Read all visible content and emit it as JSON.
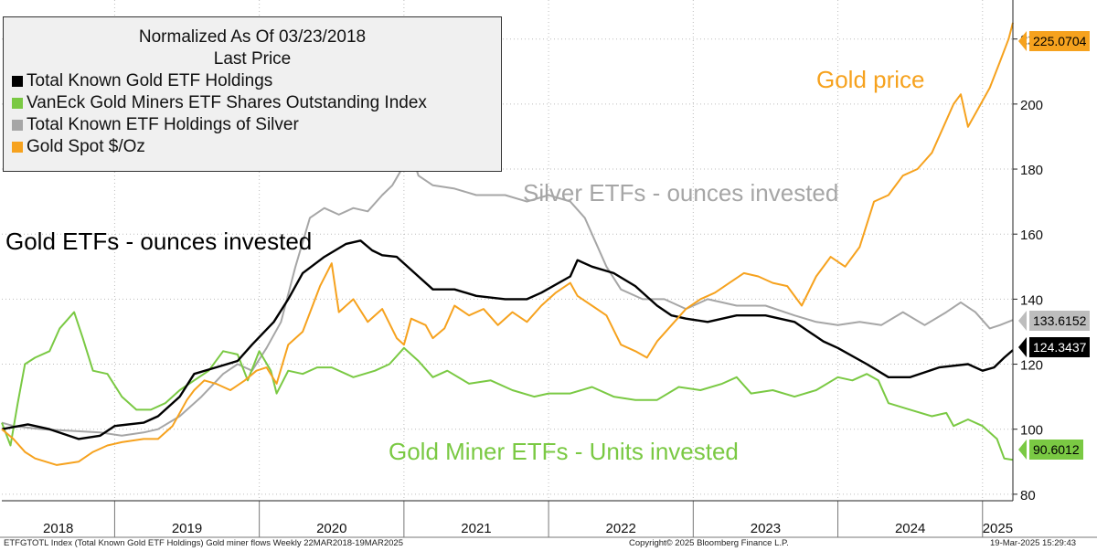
{
  "chart_data": {
    "type": "line",
    "legend": {
      "header_line1": "Normalized As Of 03/23/2018",
      "header_line2": "Last Price",
      "placement": "top-left"
    },
    "y_axis": {
      "ticks": [
        80,
        100,
        120,
        140,
        160,
        180,
        200,
        220
      ],
      "min": 78,
      "max": 232,
      "side": "right"
    },
    "x_axis": {
      "labels": [
        "2018",
        "2019",
        "2020",
        "2021",
        "2022",
        "2023",
        "2024",
        "2025"
      ],
      "range": [
        2018.22,
        2025.21
      ]
    },
    "grid": true,
    "series": [
      {
        "key": "gold_holdings",
        "name": "Total Known Gold ETF Holdings",
        "color": "#000000",
        "last_value": "124.3437",
        "points": [
          [
            2018.22,
            100
          ],
          [
            2018.4,
            101.5
          ],
          [
            2018.55,
            100
          ],
          [
            2018.75,
            97
          ],
          [
            2018.9,
            98
          ],
          [
            2019.0,
            101
          ],
          [
            2019.2,
            102
          ],
          [
            2019.3,
            104
          ],
          [
            2019.45,
            110
          ],
          [
            2019.55,
            117
          ],
          [
            2019.7,
            119
          ],
          [
            2019.85,
            121
          ],
          [
            2019.95,
            126
          ],
          [
            2020.1,
            133
          ],
          [
            2020.2,
            140
          ],
          [
            2020.3,
            148
          ],
          [
            2020.45,
            153
          ],
          [
            2020.6,
            157
          ],
          [
            2020.7,
            158
          ],
          [
            2020.78,
            155
          ],
          [
            2020.85,
            153.5
          ],
          [
            2020.95,
            153
          ],
          [
            2021.1,
            147
          ],
          [
            2021.2,
            143
          ],
          [
            2021.35,
            143
          ],
          [
            2021.5,
            141
          ],
          [
            2021.7,
            140
          ],
          [
            2021.85,
            140
          ],
          [
            2021.95,
            142
          ],
          [
            2022.15,
            147
          ],
          [
            2022.2,
            152
          ],
          [
            2022.3,
            150
          ],
          [
            2022.45,
            148
          ],
          [
            2022.6,
            144
          ],
          [
            2022.75,
            138
          ],
          [
            2022.85,
            135
          ],
          [
            2022.95,
            134
          ],
          [
            2023.1,
            133
          ],
          [
            2023.3,
            135
          ],
          [
            2023.5,
            135
          ],
          [
            2023.7,
            133
          ],
          [
            2023.9,
            127
          ],
          [
            2024.0,
            125
          ],
          [
            2024.2,
            120
          ],
          [
            2024.35,
            116
          ],
          [
            2024.5,
            116
          ],
          [
            2024.7,
            119
          ],
          [
            2024.9,
            120
          ],
          [
            2025.0,
            118
          ],
          [
            2025.08,
            119
          ],
          [
            2025.15,
            122
          ],
          [
            2025.21,
            124.34
          ]
        ]
      },
      {
        "key": "miners",
        "name": "VanEck Gold Miners ETF Shares Outstanding Index",
        "color": "#7ac943",
        "last_value": "90.6012",
        "points": [
          [
            2018.22,
            102
          ],
          [
            2018.28,
            95
          ],
          [
            2018.33,
            108
          ],
          [
            2018.38,
            120
          ],
          [
            2018.45,
            122
          ],
          [
            2018.55,
            124
          ],
          [
            2018.62,
            131
          ],
          [
            2018.72,
            136
          ],
          [
            2018.78,
            128
          ],
          [
            2018.85,
            118
          ],
          [
            2018.95,
            117
          ],
          [
            2019.05,
            110
          ],
          [
            2019.15,
            106
          ],
          [
            2019.25,
            106
          ],
          [
            2019.35,
            108
          ],
          [
            2019.45,
            112
          ],
          [
            2019.55,
            115
          ],
          [
            2019.65,
            118
          ],
          [
            2019.75,
            124
          ],
          [
            2019.85,
            123
          ],
          [
            2019.92,
            115
          ],
          [
            2020.0,
            124
          ],
          [
            2020.08,
            118
          ],
          [
            2020.12,
            111
          ],
          [
            2020.2,
            118
          ],
          [
            2020.3,
            117
          ],
          [
            2020.4,
            119
          ],
          [
            2020.5,
            119
          ],
          [
            2020.65,
            116
          ],
          [
            2020.8,
            118
          ],
          [
            2020.9,
            120
          ],
          [
            2021.0,
            125
          ],
          [
            2021.1,
            121
          ],
          [
            2021.2,
            116
          ],
          [
            2021.3,
            118
          ],
          [
            2021.45,
            114
          ],
          [
            2021.6,
            115
          ],
          [
            2021.75,
            112
          ],
          [
            2021.9,
            110
          ],
          [
            2022.0,
            111
          ],
          [
            2022.15,
            111
          ],
          [
            2022.3,
            113
          ],
          [
            2022.45,
            110
          ],
          [
            2022.6,
            109
          ],
          [
            2022.75,
            109
          ],
          [
            2022.9,
            113
          ],
          [
            2023.05,
            112
          ],
          [
            2023.2,
            114
          ],
          [
            2023.3,
            116
          ],
          [
            2023.4,
            111
          ],
          [
            2023.55,
            112
          ],
          [
            2023.7,
            110
          ],
          [
            2023.85,
            112
          ],
          [
            2024.0,
            116
          ],
          [
            2024.1,
            115
          ],
          [
            2024.2,
            117
          ],
          [
            2024.28,
            115
          ],
          [
            2024.35,
            108
          ],
          [
            2024.5,
            106
          ],
          [
            2024.65,
            104
          ],
          [
            2024.75,
            105
          ],
          [
            2024.8,
            101
          ],
          [
            2024.9,
            103
          ],
          [
            2025.0,
            101
          ],
          [
            2025.1,
            97
          ],
          [
            2025.15,
            91
          ],
          [
            2025.21,
            90.6
          ]
        ]
      },
      {
        "key": "silver",
        "name": "Total Known ETF Holdings of Silver",
        "color": "#a6a6a6",
        "last_value": "133.6152",
        "points": [
          [
            2018.22,
            102
          ],
          [
            2018.3,
            101
          ],
          [
            2018.5,
            100
          ],
          [
            2018.7,
            99.5
          ],
          [
            2018.9,
            99
          ],
          [
            2019.05,
            98
          ],
          [
            2019.2,
            99
          ],
          [
            2019.3,
            100
          ],
          [
            2019.45,
            104
          ],
          [
            2019.6,
            110
          ],
          [
            2019.75,
            117
          ],
          [
            2019.85,
            120
          ],
          [
            2019.95,
            118
          ],
          [
            2020.05,
            125
          ],
          [
            2020.15,
            133
          ],
          [
            2020.25,
            150
          ],
          [
            2020.35,
            165
          ],
          [
            2020.45,
            168
          ],
          [
            2020.55,
            166
          ],
          [
            2020.65,
            168
          ],
          [
            2020.75,
            167
          ],
          [
            2020.85,
            172
          ],
          [
            2020.92,
            175
          ],
          [
            2021.05,
            185
          ],
          [
            2021.1,
            178
          ],
          [
            2021.2,
            175
          ],
          [
            2021.35,
            174
          ],
          [
            2021.5,
            172
          ],
          [
            2021.7,
            172
          ],
          [
            2021.85,
            170
          ],
          [
            2022.0,
            172
          ],
          [
            2022.15,
            170
          ],
          [
            2022.25,
            165
          ],
          [
            2022.3,
            160
          ],
          [
            2022.4,
            150
          ],
          [
            2022.5,
            143
          ],
          [
            2022.65,
            140
          ],
          [
            2022.8,
            140
          ],
          [
            2022.95,
            137
          ],
          [
            2023.1,
            140
          ],
          [
            2023.3,
            138
          ],
          [
            2023.5,
            138
          ],
          [
            2023.7,
            135
          ],
          [
            2023.85,
            133
          ],
          [
            2024.0,
            132
          ],
          [
            2024.15,
            133
          ],
          [
            2024.3,
            132
          ],
          [
            2024.45,
            136
          ],
          [
            2024.6,
            132
          ],
          [
            2024.75,
            136
          ],
          [
            2024.85,
            139
          ],
          [
            2024.95,
            136
          ],
          [
            2025.05,
            131
          ],
          [
            2025.12,
            132
          ],
          [
            2025.21,
            133.6
          ]
        ]
      },
      {
        "key": "gold_spot",
        "name": "Gold Spot $/Oz",
        "color": "#f6a21e",
        "last_value": "225.0704",
        "points": [
          [
            2018.22,
            100
          ],
          [
            2018.3,
            97
          ],
          [
            2018.38,
            93
          ],
          [
            2018.45,
            91
          ],
          [
            2018.6,
            89
          ],
          [
            2018.75,
            90
          ],
          [
            2018.85,
            93
          ],
          [
            2018.95,
            95
          ],
          [
            2019.05,
            96
          ],
          [
            2019.2,
            97
          ],
          [
            2019.3,
            97
          ],
          [
            2019.4,
            101
          ],
          [
            2019.5,
            109
          ],
          [
            2019.55,
            112
          ],
          [
            2019.62,
            115
          ],
          [
            2019.7,
            114
          ],
          [
            2019.8,
            112
          ],
          [
            2019.9,
            115
          ],
          [
            2019.98,
            118
          ],
          [
            2020.05,
            119
          ],
          [
            2020.12,
            114
          ],
          [
            2020.2,
            126
          ],
          [
            2020.3,
            130
          ],
          [
            2020.42,
            144
          ],
          [
            2020.5,
            151
          ],
          [
            2020.55,
            136
          ],
          [
            2020.65,
            140
          ],
          [
            2020.75,
            133
          ],
          [
            2020.85,
            137
          ],
          [
            2020.95,
            128
          ],
          [
            2021.0,
            126
          ],
          [
            2021.05,
            134
          ],
          [
            2021.15,
            132
          ],
          [
            2021.2,
            128
          ],
          [
            2021.28,
            131
          ],
          [
            2021.35,
            138
          ],
          [
            2021.45,
            135
          ],
          [
            2021.55,
            137
          ],
          [
            2021.65,
            132
          ],
          [
            2021.75,
            136
          ],
          [
            2021.85,
            133
          ],
          [
            2021.95,
            138
          ],
          [
            2022.05,
            142
          ],
          [
            2022.15,
            145
          ],
          [
            2022.2,
            141
          ],
          [
            2022.3,
            138
          ],
          [
            2022.4,
            135
          ],
          [
            2022.5,
            126
          ],
          [
            2022.6,
            124
          ],
          [
            2022.68,
            122
          ],
          [
            2022.75,
            127
          ],
          [
            2022.85,
            132
          ],
          [
            2022.95,
            137
          ],
          [
            2023.05,
            140
          ],
          [
            2023.15,
            142
          ],
          [
            2023.25,
            145
          ],
          [
            2023.35,
            148
          ],
          [
            2023.45,
            147
          ],
          [
            2023.55,
            145
          ],
          [
            2023.65,
            144
          ],
          [
            2023.75,
            138
          ],
          [
            2023.85,
            147
          ],
          [
            2023.95,
            153
          ],
          [
            2024.05,
            150
          ],
          [
            2024.15,
            156
          ],
          [
            2024.25,
            170
          ],
          [
            2024.35,
            172
          ],
          [
            2024.45,
            178
          ],
          [
            2024.55,
            180
          ],
          [
            2024.65,
            185
          ],
          [
            2024.75,
            195
          ],
          [
            2024.8,
            200
          ],
          [
            2024.85,
            203
          ],
          [
            2024.9,
            193
          ],
          [
            2024.95,
            197
          ],
          [
            2025.05,
            205
          ],
          [
            2025.12,
            213
          ],
          [
            2025.18,
            220
          ],
          [
            2025.21,
            225
          ]
        ]
      }
    ],
    "annotations": [
      {
        "key": "gold",
        "text": "Gold price",
        "color": "#f6a21e"
      },
      {
        "key": "silver",
        "text": "Silver ETFs - ounces invested",
        "color": "#a6a6a6"
      },
      {
        "key": "goldetf",
        "text": "Gold ETFs - ounces invested",
        "color": "#000000"
      },
      {
        "key": "miner",
        "text": "Gold Miner ETFs - Units invested",
        "color": "#7ac943"
      }
    ]
  },
  "footer": {
    "source": "ETFGTOTL Index (Total Known Gold ETF Holdings) Gold miner flows  Weekly 22MAR2018-19MAR2025",
    "copyright": "Copyright© 2025 Bloomberg Finance L.P.",
    "timestamp": "19-Mar-2025 15:29:43"
  }
}
